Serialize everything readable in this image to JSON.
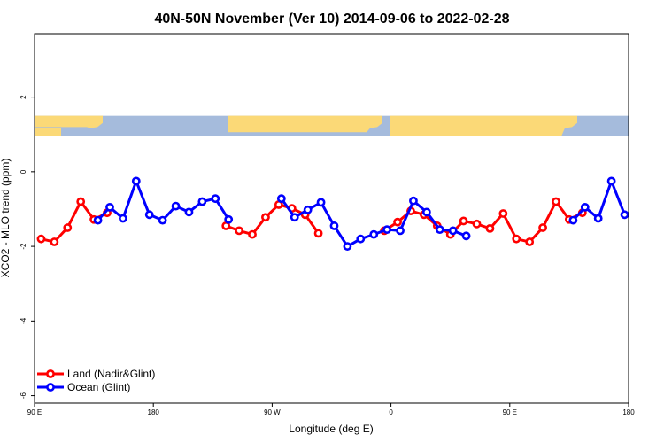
{
  "chart_data": {
    "type": "line",
    "title": "40N-50N November (Ver 10)   2014-09-06 to 2022-02-28",
    "xlabel": "Longitude (deg E)",
    "ylabel": "XCO2 - MLO trend (ppm)",
    "xlim": [
      90,
      540
    ],
    "ylim": [
      -6.2,
      3.7
    ],
    "x_ticks": [
      {
        "value": 90,
        "label": "90 E"
      },
      {
        "value": 180,
        "label": "180"
      },
      {
        "value": 270,
        "label": "90 W"
      },
      {
        "value": 360,
        "label": "0"
      },
      {
        "value": 450,
        "label": "90 E"
      },
      {
        "value": 540,
        "label": "180"
      }
    ],
    "y_ticks": [
      {
        "value": 2,
        "label": "2"
      },
      {
        "value": 0,
        "label": "0"
      },
      {
        "value": -2,
        "label": "-2"
      },
      {
        "value": -4,
        "label": "-4"
      },
      {
        "value": -6,
        "label": "-6"
      }
    ],
    "legend_position": "bottom-left",
    "map_strip": {
      "y_top": 1.5,
      "y_bottom": 0.95,
      "ocean_color": "#a5bbdc",
      "land_color": "#fbd977"
    },
    "series": [
      {
        "name": "Land (Nadir&Glint)",
        "color": "#ff0000",
        "segments": [
          [
            [
              95,
              -1.8
            ],
            [
              105,
              -1.88
            ],
            [
              115,
              -1.5
            ],
            [
              125,
              -0.8
            ],
            [
              135,
              -1.28
            ],
            [
              145,
              -1.1
            ]
          ],
          [
            [
              235,
              -1.45
            ],
            [
              245,
              -1.58
            ],
            [
              255,
              -1.68
            ],
            [
              265,
              -1.22
            ],
            [
              275,
              -0.88
            ],
            [
              285,
              -0.98
            ],
            [
              295,
              -1.15
            ],
            [
              305,
              -1.65
            ]
          ],
          [
            [
              355,
              -1.58
            ],
            [
              365,
              -1.35
            ],
            [
              375,
              -1.05
            ],
            [
              385,
              -1.15
            ],
            [
              395,
              -1.45
            ],
            [
              405,
              -1.68
            ],
            [
              415,
              -1.32
            ],
            [
              425,
              -1.4
            ],
            [
              435,
              -1.52
            ],
            [
              445,
              -1.12
            ],
            [
              455,
              -1.8
            ],
            [
              465,
              -1.88
            ],
            [
              475,
              -1.5
            ],
            [
              485,
              -0.8
            ],
            [
              495,
              -1.28
            ],
            [
              505,
              -1.1
            ]
          ]
        ]
      },
      {
        "name": "Ocean (Glint)",
        "color": "#0000ff",
        "segments": [
          [
            [
              138,
              -1.3
            ],
            [
              147,
              -0.95
            ],
            [
              157,
              -1.25
            ],
            [
              167,
              -0.25
            ],
            [
              177,
              -1.15
            ],
            [
              187,
              -1.3
            ],
            [
              197,
              -0.92
            ],
            [
              207,
              -1.08
            ],
            [
              217,
              -0.8
            ],
            [
              227,
              -0.72
            ],
            [
              237,
              -1.28
            ]
          ],
          [
            [
              277,
              -0.72
            ],
            [
              287,
              -1.22
            ],
            [
              297,
              -1.02
            ],
            [
              307,
              -0.82
            ],
            [
              317,
              -1.45
            ],
            [
              327,
              -2.0
            ],
            [
              337,
              -1.8
            ],
            [
              347,
              -1.68
            ],
            [
              357,
              -1.55
            ],
            [
              367,
              -1.58
            ],
            [
              377,
              -0.78
            ],
            [
              387,
              -1.08
            ],
            [
              397,
              -1.55
            ],
            [
              407,
              -1.58
            ],
            [
              417,
              -1.72
            ]
          ],
          [
            [
              498,
              -1.3
            ],
            [
              507,
              -0.95
            ],
            [
              517,
              -1.25
            ],
            [
              527,
              -0.25
            ],
            [
              537,
              -1.15
            ]
          ]
        ]
      }
    ]
  }
}
